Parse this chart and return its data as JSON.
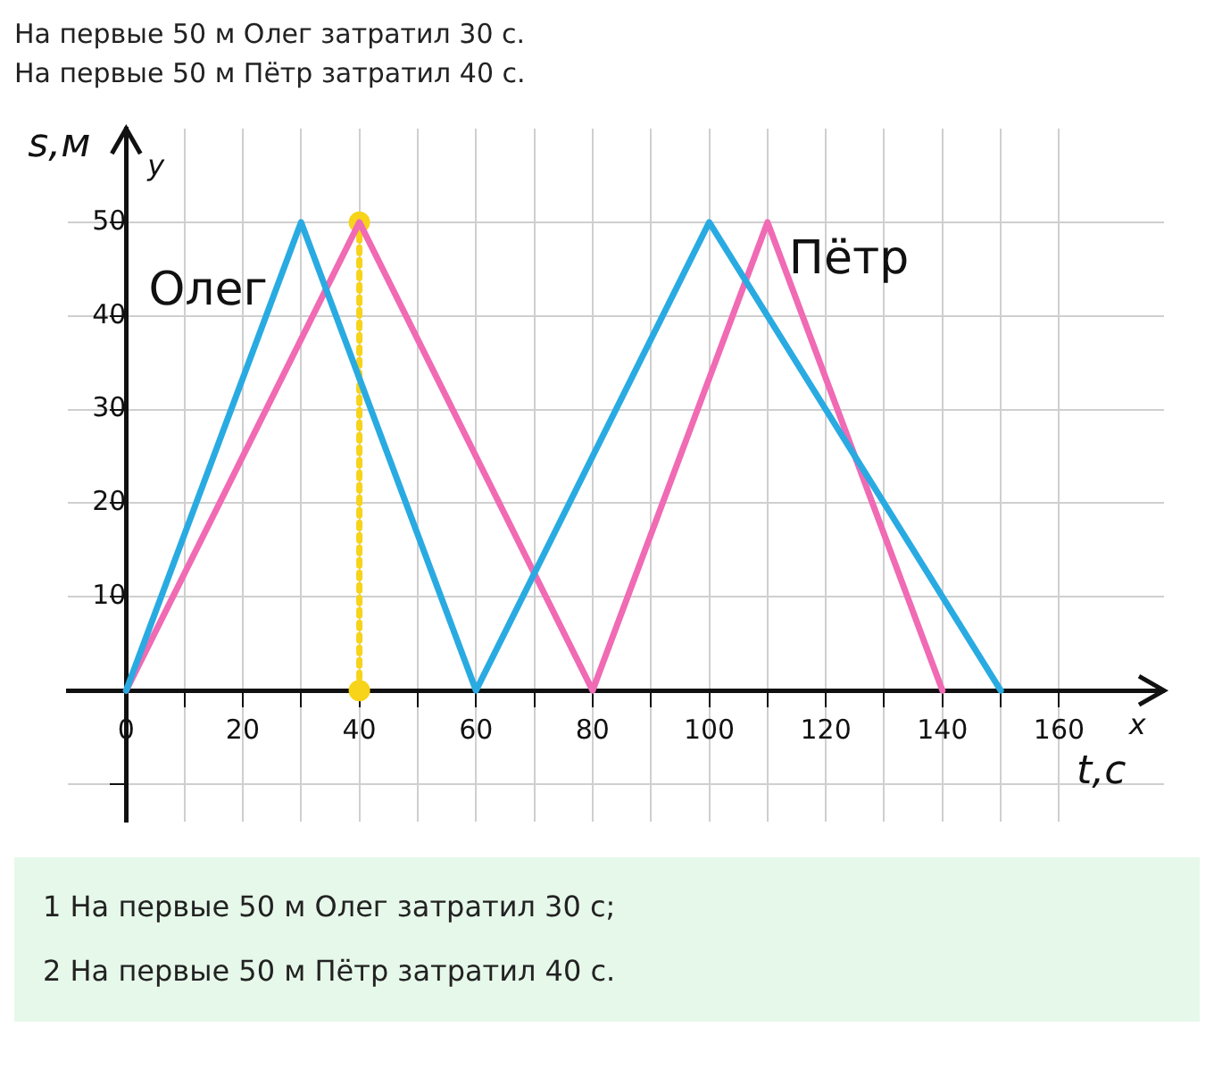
{
  "chart_data": {
    "type": "line",
    "annotations": [
      "На первые 50 м Олег затратил 30 с.",
      "На первые 50 м Пётр затратил 40 с.",
      "y",
      "x",
      "1  На первые 50 м Олег затратил 30 с;",
      "2  На первые 50 м Пётр затратил 40 с."
    ],
    "xlabel": "t,с",
    "ylabel": "s,м",
    "series": [
      {
        "name": "Олег",
        "color": "#29abe2",
        "x": [
          0,
          30,
          60,
          100,
          150
        ],
        "values": [
          0,
          50,
          0,
          50,
          0
        ],
        "marker": "none",
        "line_style": "solid"
      },
      {
        "name": "Пётр",
        "color": "#f06ab4",
        "x": [
          0,
          40,
          80,
          110,
          140
        ],
        "values": [
          0,
          50,
          0,
          50,
          0
        ],
        "marker": "none",
        "line_style": "solid"
      },
      {
        "color": "#f7d31a",
        "x": [
          40,
          40
        ],
        "values": [
          0,
          50
        ],
        "marker": "circle",
        "line_style": "dotted"
      }
    ],
    "xlim": [
      -10,
      178
    ],
    "ylim": [
      -14,
      60
    ],
    "xticks": [
      {
        "value": 0,
        "label": "0"
      },
      {
        "value": 10,
        "label": null
      },
      20,
      {
        "value": 30,
        "label": null
      },
      40,
      {
        "value": 50,
        "label": null
      },
      60,
      {
        "value": 70,
        "label": null
      },
      80,
      {
        "value": 90,
        "label": null
      },
      100,
      {
        "value": 110,
        "label": null
      },
      120,
      {
        "value": 130,
        "label": null
      },
      140,
      {
        "value": 150,
        "label": null
      },
      160
    ],
    "yticks": [
      {
        "value": -10,
        "label": null
      },
      {
        "value": 0,
        "label": null
      },
      10,
      20,
      30,
      40,
      50
    ],
    "grid": true,
    "legend": false
  }
}
